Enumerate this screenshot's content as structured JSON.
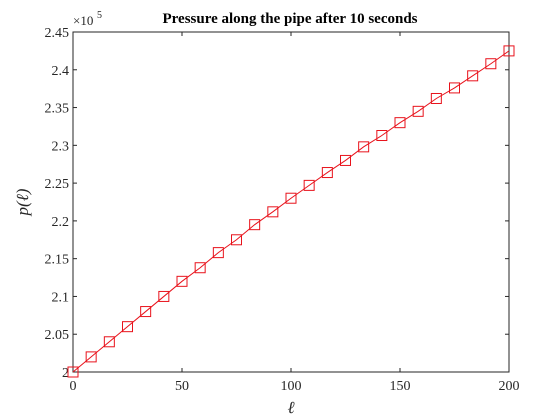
{
  "chart_data": {
    "type": "line",
    "title": "Pressure along the pipe after 10 seconds",
    "xlabel": "ℓ",
    "ylabel": "p(ℓ)",
    "y_exponent_base": "×10",
    "y_exponent_power": "5",
    "xlim": [
      0,
      200
    ],
    "ylim": [
      200000,
      245000
    ],
    "x_ticks": [
      0,
      50,
      100,
      150,
      200
    ],
    "x_tick_labels": [
      "0",
      "50",
      "100",
      "150",
      "200"
    ],
    "y_ticks": [
      200000,
      205000,
      210000,
      215000,
      220000,
      225000,
      230000,
      235000,
      240000,
      245000
    ],
    "y_tick_labels": [
      "2",
      "2.05",
      "2.1",
      "2.15",
      "2.2",
      "2.25",
      "2.3",
      "2.35",
      "2.4",
      "2.45"
    ],
    "grid": false,
    "legend": "none",
    "marker": "square",
    "line_color": "#e8121b",
    "series": [
      {
        "x": [
          0,
          8.33,
          16.67,
          25,
          33.33,
          41.67,
          50,
          58.33,
          66.67,
          75,
          83.33,
          91.67,
          100,
          108.33,
          116.67,
          125,
          133.33,
          141.67,
          150,
          158.33,
          166.67,
          175,
          183.33,
          191.67,
          200
        ],
        "values": [
          200000,
          202000,
          204000,
          206000,
          208000,
          210000,
          212000,
          213800,
          215800,
          217500,
          219500,
          221200,
          223000,
          224700,
          226400,
          228000,
          229800,
          231300,
          233000,
          234500,
          236200,
          237600,
          239200,
          240800,
          242500
        ]
      }
    ]
  }
}
